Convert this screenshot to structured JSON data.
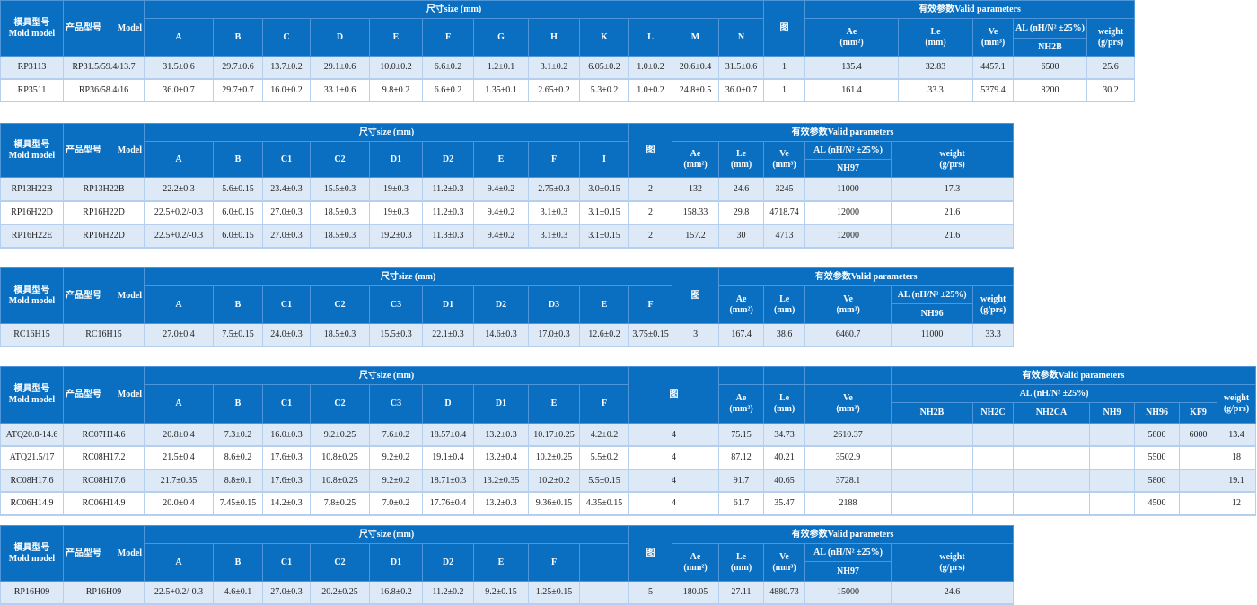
{
  "colors": {
    "header": "#0b6fc1",
    "row_alt": "#dde9f6",
    "border": "#b4d0ee"
  },
  "labels": {
    "mold_model": "模具型号\nMold model",
    "product_model": "产品型号",
    "model": "Model",
    "size": "尺寸size (mm)",
    "figure": "图",
    "valid": "有效参数Valid parameters",
    "ae": "Ae\n(mm²)",
    "le": "Le\n(mm)",
    "ve": "Ve\n(mm³)",
    "al": "AL (nH/N² ±25%)",
    "weight": "weight\n(g/prs)"
  },
  "tables": [
    {
      "dims": [
        "A",
        "B",
        "C",
        "D",
        "E",
        "F",
        "G",
        "H",
        "K",
        "L",
        "M",
        "N"
      ],
      "materials": [
        "NH2B"
      ],
      "rows": [
        [
          "RP3113",
          "RP31.5/59.4/13.7",
          "31.5±0.6",
          "29.7±0.6",
          "13.7±0.2",
          "29.1±0.6",
          "10.0±0.2",
          "6.6±0.2",
          "1.2±0.1",
          "3.1±0.2",
          "6.05±0.2",
          "1.0±0.2",
          "20.6±0.4",
          "31.5±0.6",
          "1",
          "135.4",
          "32.83",
          "4457.1",
          "6500",
          "25.6"
        ],
        [
          "RP3511",
          "RP36/58.4/16",
          "36.0±0.7",
          "29.7±0.7",
          "16.0±0.2",
          "33.1±0.6",
          "9.8±0.2",
          "6.6±0.2",
          "1.35±0.1",
          "2.65±0.2",
          "5.3±0.2",
          "1.0±0.2",
          "24.8±0.5",
          "36.0±0.7",
          "1",
          "161.4",
          "33.3",
          "5379.4",
          "8200",
          "30.2"
        ]
      ]
    },
    {
      "dims": [
        "A",
        "B",
        "C1",
        "C2",
        "D1",
        "D2",
        "E",
        "F",
        "I"
      ],
      "materials": [
        "NH97"
      ],
      "rows": [
        [
          "RP13H22B",
          "RP13H22B",
          "22.2±0.3",
          "5.6±0.15",
          "23.4±0.3",
          "15.5±0.3",
          "19±0.3",
          "11.2±0.3",
          "9.4±0.2",
          "2.75±0.3",
          "3.0±0.15",
          "2",
          "132",
          "24.6",
          "3245",
          "11000",
          "17.3"
        ],
        [
          "RP16H22D",
          "RP16H22D",
          "22.5+0.2/-0.3",
          "6.0±0.15",
          "27.0±0.3",
          "18.5±0.3",
          "19±0.3",
          "11.2±0.3",
          "9.4±0.2",
          "3.1±0.3",
          "3.1±0.15",
          "2",
          "158.33",
          "29.8",
          "4718.74",
          "12000",
          "21.6"
        ],
        [
          "RP16H22E",
          "RP16H22D",
          "22.5+0.2/-0.3",
          "6.0±0.15",
          "27.0±0.3",
          "18.5±0.3",
          "19.2±0.3",
          "11.3±0.3",
          "9.4±0.2",
          "3.1±0.3",
          "3.1±0.15",
          "2",
          "157.2",
          "30",
          "4713",
          "12000",
          "21.6"
        ]
      ]
    },
    {
      "dims": [
        "A",
        "B",
        "C1",
        "C2",
        "C3",
        "D1",
        "D2",
        "D3",
        "E",
        "F"
      ],
      "materials": [
        "NH96"
      ],
      "rows": [
        [
          "RC16H15",
          "RC16H15",
          "27.0±0.4",
          "7.5±0.15",
          "24.0±0.3",
          "18.5±0.3",
          "15.5±0.3",
          "22.1±0.3",
          "14.6±0.3",
          "17.0±0.3",
          "12.6±0.2",
          "3.75±0.15",
          "3",
          "167.4",
          "38.6",
          "6460.7",
          "11000",
          "33.3"
        ]
      ]
    },
    {
      "dims": [
        "A",
        "B",
        "C1",
        "C2",
        "C3",
        "D",
        "D1",
        "E",
        "F"
      ],
      "materials": [
        "NH2B",
        "NH2C",
        "NH2CA",
        "NH9",
        "NH96",
        "KF9"
      ],
      "rows": [
        [
          "ATQ20.8-14.6",
          "RC07H14.6",
          "20.8±0.4",
          "7.3±0.2",
          "16.0±0.3",
          "9.2±0.25",
          "7.6±0.2",
          "18.57±0.4",
          "13.2±0.3",
          "10.17±0.25",
          "4.2±0.2",
          "4",
          "75.15",
          "34.73",
          "2610.37",
          "",
          "",
          "",
          "",
          "5800",
          "6000",
          "13.4"
        ],
        [
          "ATQ21.5/17",
          "RC08H17.2",
          "21.5±0.4",
          "8.6±0.2",
          "17.6±0.3",
          "10.8±0.25",
          "9.2±0.2",
          "19.1±0.4",
          "13.2±0.4",
          "10.2±0.25",
          "5.5±0.2",
          "4",
          "87.12",
          "40.21",
          "3502.9",
          "",
          "",
          "",
          "",
          "5500",
          "",
          "18"
        ],
        [
          "RC08H17.6",
          "RC08H17.6",
          "21.7±0.35",
          "8.8±0.1",
          "17.6±0.3",
          "10.8±0.25",
          "9.2±0.2",
          "18.71±0.3",
          "13.2±0.35",
          "10.2±0.2",
          "5.5±0.15",
          "4",
          "91.7",
          "40.65",
          "3728.1",
          "",
          "",
          "",
          "",
          "5800",
          "",
          "19.1"
        ],
        [
          "RC06H14.9",
          "RC06H14.9",
          "20.0±0.4",
          "7.45±0.15",
          "14.2±0.3",
          "7.8±0.25",
          "7.0±0.2",
          "17.76±0.4",
          "13.2±0.3",
          "9.36±0.15",
          "4.35±0.15",
          "4",
          "61.7",
          "35.47",
          "2188",
          "",
          "",
          "",
          "",
          "4500",
          "",
          "12"
        ]
      ]
    },
    {
      "dims": [
        "A",
        "B",
        "C1",
        "C2",
        "D1",
        "D2",
        "E",
        "F",
        ""
      ],
      "materials": [
        "NH97"
      ],
      "rows": [
        [
          "RP16H09",
          "RP16H09",
          "22.5+0.2/-0.3",
          "4.6±0.1",
          "27.0±0.3",
          "20.2±0.25",
          "16.8±0.2",
          "11.2±0.2",
          "9.2±0.15",
          "1.25±0.15",
          "",
          "5",
          "180.05",
          "27.11",
          "4880.73",
          "15000",
          "24.6"
        ]
      ]
    }
  ]
}
